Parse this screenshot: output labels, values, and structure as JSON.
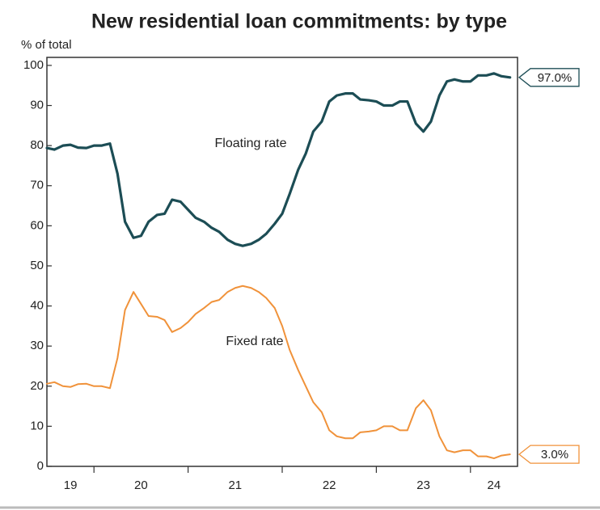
{
  "chart_data": {
    "type": "line",
    "title": "New residential loan commitments: by type",
    "ylabel": "% of total",
    "x": [
      19.5,
      19.58,
      19.67,
      19.75,
      19.83,
      19.92,
      20.0,
      20.08,
      20.17,
      20.25,
      20.33,
      20.42,
      20.5,
      20.58,
      20.67,
      20.75,
      20.83,
      20.92,
      21.0,
      21.08,
      21.17,
      21.25,
      21.33,
      21.42,
      21.5,
      21.58,
      21.67,
      21.75,
      21.83,
      21.92,
      22.0,
      22.08,
      22.17,
      22.25,
      22.33,
      22.42,
      22.5,
      22.58,
      22.67,
      22.75,
      22.83,
      22.92,
      23.0,
      23.08,
      23.17,
      23.25,
      23.33,
      23.42,
      23.5,
      23.58,
      23.67,
      23.75,
      23.83,
      23.92,
      24.0,
      24.08,
      24.17,
      24.25,
      24.33,
      24.42
    ],
    "series": [
      {
        "name": "Floating rate",
        "color": "#1c4d55",
        "values": [
          79.4,
          79,
          80,
          80.2,
          79.5,
          79.4,
          80,
          80,
          80.5,
          73,
          61,
          57,
          57.5,
          61,
          62.7,
          63,
          66.5,
          66,
          64,
          62,
          61,
          59.5,
          58.5,
          56.5,
          55.5,
          55,
          55.5,
          56.5,
          58,
          60.5,
          63,
          68,
          74,
          78,
          83.5,
          86,
          91,
          92.5,
          93,
          93,
          91.5,
          91.3,
          91,
          90,
          90,
          91,
          91,
          85.5,
          83.5,
          86,
          92.5,
          96,
          96.5,
          96,
          96,
          97.5,
          97.5,
          98,
          97.3,
          97.0
        ],
        "value_labels": [
          null,
          null,
          null,
          null,
          null,
          null,
          null,
          null,
          null,
          null,
          null,
          null,
          null,
          null,
          null,
          null,
          null,
          null,
          null,
          null,
          null,
          null,
          null,
          null,
          null,
          null,
          null,
          null,
          null,
          null,
          null,
          null,
          null,
          null,
          null,
          null,
          null,
          null,
          null,
          null,
          null,
          null,
          null,
          null,
          null,
          null,
          null,
          null,
          null,
          null,
          null,
          null,
          null,
          null,
          null,
          null,
          null,
          null,
          null,
          "97.0%"
        ]
      },
      {
        "name": "Fixed rate",
        "color": "#f0923a",
        "values": [
          20.6,
          21,
          20,
          19.8,
          20.5,
          20.6,
          20,
          20,
          19.5,
          27,
          39,
          43.5,
          40.5,
          37.5,
          37.3,
          36.5,
          33.5,
          34.5,
          36,
          38,
          39.5,
          41,
          41.5,
          43.5,
          44.5,
          45,
          44.5,
          43.5,
          42,
          39.5,
          35,
          29,
          24,
          20,
          16,
          13.5,
          9,
          7.5,
          7,
          7,
          8.5,
          8.7,
          9,
          10,
          10,
          9,
          9,
          14.5,
          16.5,
          14,
          7.5,
          4,
          3.5,
          4,
          4,
          2.5,
          2.5,
          2,
          2.7,
          3.0
        ],
        "value_labels": [
          null,
          null,
          null,
          null,
          null,
          null,
          null,
          null,
          null,
          null,
          null,
          null,
          null,
          null,
          null,
          null,
          null,
          null,
          null,
          null,
          null,
          null,
          null,
          null,
          null,
          null,
          null,
          null,
          null,
          null,
          null,
          null,
          null,
          null,
          null,
          null,
          null,
          null,
          null,
          null,
          null,
          null,
          null,
          null,
          null,
          null,
          null,
          null,
          null,
          null,
          null,
          null,
          null,
          null,
          null,
          null,
          null,
          null,
          null,
          "3.0%"
        ]
      }
    ],
    "xlim": [
      19.5,
      24.5
    ],
    "xticks": [
      20,
      21,
      22,
      23,
      24
    ],
    "xtick_labels": [
      {
        "value": 19.75,
        "label": "19"
      },
      {
        "value": 20.5,
        "label": "20"
      },
      {
        "value": 21.5,
        "label": "21"
      },
      {
        "value": 22.5,
        "label": "22"
      },
      {
        "value": 23.5,
        "label": "23"
      },
      {
        "value": 24.25,
        "label": "24"
      }
    ],
    "ylim": [
      0,
      102
    ],
    "yticks": [
      0,
      10,
      20,
      30,
      40,
      50,
      60,
      70,
      80,
      90,
      100
    ],
    "grid": false
  }
}
